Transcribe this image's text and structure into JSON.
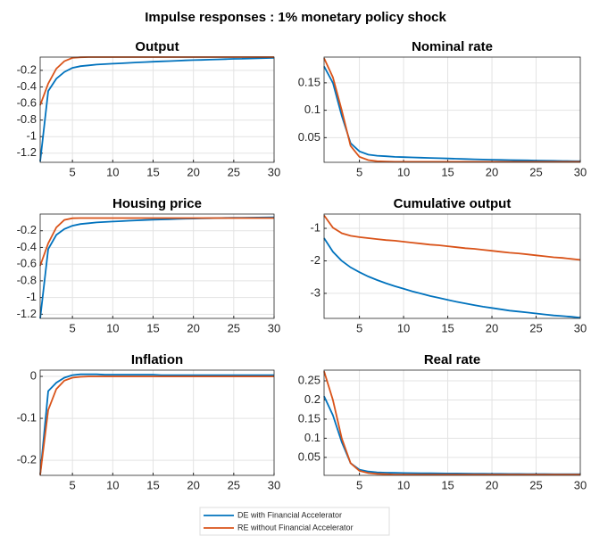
{
  "title": "Impulse responses : 1% monetary policy shock",
  "chart_data": [
    {
      "type": "line",
      "title": "Output",
      "x": [
        1,
        2,
        3,
        4,
        5,
        6,
        7,
        8,
        9,
        10,
        11,
        12,
        13,
        14,
        15,
        16,
        17,
        18,
        19,
        20,
        21,
        22,
        23,
        24,
        25,
        26,
        27,
        28,
        29,
        30
      ],
      "xlim": [
        1,
        30
      ],
      "xticks": [
        5,
        10,
        15,
        20,
        25,
        30
      ],
      "ylim": [
        -1.31,
        -0.04
      ],
      "yticks": [
        -1.2,
        -1,
        -0.8,
        -0.6,
        -0.4,
        -0.2
      ],
      "grid": true,
      "series": [
        {
          "name": "DE with Financial Accelerator",
          "color": "#0072bd",
          "values": [
            -1.3,
            -0.45,
            -0.3,
            -0.22,
            -0.17,
            -0.15,
            -0.14,
            -0.13,
            -0.125,
            -0.12,
            -0.115,
            -0.11,
            -0.105,
            -0.1,
            -0.096,
            -0.092,
            -0.088,
            -0.084,
            -0.08,
            -0.077,
            -0.074,
            -0.071,
            -0.068,
            -0.065,
            -0.062,
            -0.06,
            -0.057,
            -0.055,
            -0.052,
            -0.05
          ]
        },
        {
          "name": "RE without Financial Accelerator",
          "color": "#d95319",
          "values": [
            -0.62,
            -0.36,
            -0.18,
            -0.09,
            -0.05,
            -0.042,
            -0.04,
            -0.04,
            -0.04,
            -0.04,
            -0.04,
            -0.04,
            -0.04,
            -0.04,
            -0.04,
            -0.04,
            -0.04,
            -0.04,
            -0.04,
            -0.04,
            -0.04,
            -0.04,
            -0.04,
            -0.04,
            -0.04,
            -0.04,
            -0.04,
            -0.04,
            -0.04,
            -0.04
          ]
        }
      ]
    },
    {
      "type": "line",
      "title": "Nominal rate",
      "x": [
        1,
        2,
        3,
        4,
        5,
        6,
        7,
        8,
        9,
        10,
        11,
        12,
        13,
        14,
        15,
        16,
        17,
        18,
        19,
        20,
        21,
        22,
        23,
        24,
        25,
        26,
        27,
        28,
        29,
        30
      ],
      "xlim": [
        1,
        30
      ],
      "xticks": [
        5,
        10,
        15,
        20,
        25,
        30
      ],
      "ylim": [
        0.005,
        0.197
      ],
      "yticks": [
        0.05,
        0.1,
        0.15
      ],
      "grid": true,
      "series": [
        {
          "name": "DE with Financial Accelerator",
          "color": "#0072bd",
          "values": [
            0.18,
            0.15,
            0.09,
            0.04,
            0.025,
            0.019,
            0.017,
            0.016,
            0.015,
            0.0145,
            0.014,
            0.0135,
            0.013,
            0.0125,
            0.012,
            0.0115,
            0.011,
            0.0105,
            0.01,
            0.0097,
            0.0094,
            0.0091,
            0.0088,
            0.0085,
            0.0082,
            0.008,
            0.0077,
            0.0075,
            0.0072,
            0.007
          ]
        },
        {
          "name": "RE without Financial Accelerator",
          "color": "#d95319",
          "values": [
            0.195,
            0.16,
            0.1,
            0.035,
            0.015,
            0.009,
            0.007,
            0.0065,
            0.006,
            0.006,
            0.006,
            0.006,
            0.006,
            0.006,
            0.006,
            0.006,
            0.006,
            0.006,
            0.006,
            0.006,
            0.006,
            0.006,
            0.006,
            0.006,
            0.006,
            0.006,
            0.006,
            0.006,
            0.006,
            0.006
          ]
        }
      ]
    },
    {
      "type": "line",
      "title": "Housing price",
      "x": [
        1,
        2,
        3,
        4,
        5,
        6,
        7,
        8,
        9,
        10,
        11,
        12,
        13,
        14,
        15,
        16,
        17,
        18,
        19,
        20,
        21,
        22,
        23,
        24,
        25,
        26,
        27,
        28,
        29,
        30
      ],
      "xlim": [
        1,
        30
      ],
      "xticks": [
        5,
        10,
        15,
        20,
        25,
        30
      ],
      "ylim": [
        -1.25,
        0
      ],
      "yticks": [
        -1.2,
        -1,
        -0.8,
        -0.6,
        -0.4,
        -0.2
      ],
      "grid": true,
      "series": [
        {
          "name": "DE with Financial Accelerator",
          "color": "#0072bd",
          "values": [
            -1.25,
            -0.42,
            -0.25,
            -0.18,
            -0.14,
            -0.12,
            -0.11,
            -0.1,
            -0.095,
            -0.09,
            -0.085,
            -0.08,
            -0.076,
            -0.072,
            -0.068,
            -0.065,
            -0.062,
            -0.059,
            -0.056,
            -0.054,
            -0.052,
            -0.05,
            -0.048,
            -0.046,
            -0.045,
            -0.044,
            -0.043,
            -0.042,
            -0.041,
            -0.04
          ]
        },
        {
          "name": "RE without Financial Accelerator",
          "color": "#d95319",
          "values": [
            -0.62,
            -0.35,
            -0.16,
            -0.07,
            -0.05,
            -0.048,
            -0.048,
            -0.048,
            -0.048,
            -0.048,
            -0.048,
            -0.048,
            -0.048,
            -0.048,
            -0.048,
            -0.048,
            -0.048,
            -0.048,
            -0.048,
            -0.048,
            -0.048,
            -0.048,
            -0.048,
            -0.048,
            -0.048,
            -0.048,
            -0.048,
            -0.048,
            -0.048,
            -0.048
          ]
        }
      ]
    },
    {
      "type": "line",
      "title": "Cumulative output",
      "x": [
        1,
        2,
        3,
        4,
        5,
        6,
        7,
        8,
        9,
        10,
        11,
        12,
        13,
        14,
        15,
        16,
        17,
        18,
        19,
        20,
        21,
        22,
        23,
        24,
        25,
        26,
        27,
        28,
        29,
        30
      ],
      "xlim": [
        1,
        30
      ],
      "xticks": [
        5,
        10,
        15,
        20,
        25,
        30
      ],
      "ylim": [
        -3.77,
        -0.56
      ],
      "yticks": [
        -3,
        -2,
        -1
      ],
      "grid": true,
      "series": [
        {
          "name": "DE with Financial Accelerator",
          "color": "#0072bd",
          "values": [
            -1.3,
            -1.72,
            -2.0,
            -2.2,
            -2.35,
            -2.48,
            -2.59,
            -2.69,
            -2.78,
            -2.86,
            -2.94,
            -3.01,
            -3.08,
            -3.14,
            -3.2,
            -3.26,
            -3.31,
            -3.36,
            -3.41,
            -3.45,
            -3.49,
            -3.53,
            -3.56,
            -3.59,
            -3.62,
            -3.65,
            -3.68,
            -3.7,
            -3.72,
            -3.75
          ]
        },
        {
          "name": "RE without Financial Accelerator",
          "color": "#d95319",
          "values": [
            -0.6,
            -0.98,
            -1.15,
            -1.23,
            -1.27,
            -1.3,
            -1.33,
            -1.36,
            -1.38,
            -1.41,
            -1.44,
            -1.47,
            -1.5,
            -1.52,
            -1.55,
            -1.58,
            -1.61,
            -1.63,
            -1.66,
            -1.69,
            -1.72,
            -1.75,
            -1.77,
            -1.8,
            -1.83,
            -1.86,
            -1.89,
            -1.91,
            -1.94,
            -1.97
          ]
        }
      ]
    },
    {
      "type": "line",
      "title": "Inflation",
      "x": [
        1,
        2,
        3,
        4,
        5,
        6,
        7,
        8,
        9,
        10,
        11,
        12,
        13,
        14,
        15,
        16,
        17,
        18,
        19,
        20,
        21,
        22,
        23,
        24,
        25,
        26,
        27,
        28,
        29,
        30
      ],
      "xlim": [
        1,
        30
      ],
      "xticks": [
        5,
        10,
        15,
        20,
        25,
        30
      ],
      "ylim": [
        -0.236,
        0.015
      ],
      "yticks": [
        -0.2,
        -0.1,
        0
      ],
      "grid": true,
      "series": [
        {
          "name": "DE with Financial Accelerator",
          "color": "#0072bd",
          "values": [
            -0.235,
            -0.035,
            -0.015,
            -0.003,
            0.003,
            0.005,
            0.005,
            0.005,
            0.004,
            0.004,
            0.004,
            0.004,
            0.004,
            0.004,
            0.004,
            0.003,
            0.003,
            0.003,
            0.003,
            0.003,
            0.003,
            0.003,
            0.003,
            0.003,
            0.003,
            0.003,
            0.003,
            0.003,
            0.003,
            0.003
          ]
        },
        {
          "name": "RE without Financial Accelerator",
          "color": "#d95319",
          "values": [
            -0.235,
            -0.08,
            -0.03,
            -0.01,
            -0.003,
            -0.001,
            0,
            0,
            0,
            0,
            0,
            0,
            0,
            0,
            0,
            0,
            0,
            0,
            0,
            0,
            0,
            0,
            0,
            0,
            0,
            0,
            0,
            0,
            0,
            0
          ]
        }
      ]
    },
    {
      "type": "line",
      "title": "Real rate",
      "x": [
        1,
        2,
        3,
        4,
        5,
        6,
        7,
        8,
        9,
        10,
        11,
        12,
        13,
        14,
        15,
        16,
        17,
        18,
        19,
        20,
        21,
        22,
        23,
        24,
        25,
        26,
        27,
        28,
        29,
        30
      ],
      "xlim": [
        1,
        30
      ],
      "xticks": [
        5,
        10,
        15,
        20,
        25,
        30
      ],
      "ylim": [
        0.003,
        0.278
      ],
      "yticks": [
        0.05,
        0.1,
        0.15,
        0.2,
        0.25
      ],
      "grid": true,
      "series": [
        {
          "name": "DE with Financial Accelerator",
          "color": "#0072bd",
          "values": [
            0.21,
            0.16,
            0.09,
            0.035,
            0.018,
            0.013,
            0.011,
            0.01,
            0.0095,
            0.009,
            0.0088,
            0.0086,
            0.0084,
            0.0082,
            0.008,
            0.0078,
            0.0076,
            0.0074,
            0.0072,
            0.007,
            0.0069,
            0.0068,
            0.0067,
            0.0066,
            0.0065,
            0.0064,
            0.0063,
            0.0062,
            0.0061,
            0.006
          ]
        },
        {
          "name": "RE without Financial Accelerator",
          "color": "#d95319",
          "values": [
            0.275,
            0.2,
            0.1,
            0.035,
            0.015,
            0.009,
            0.007,
            0.006,
            0.005,
            0.005,
            0.005,
            0.005,
            0.005,
            0.005,
            0.005,
            0.005,
            0.005,
            0.005,
            0.005,
            0.005,
            0.005,
            0.005,
            0.005,
            0.005,
            0.005,
            0.005,
            0.005,
            0.005,
            0.005,
            0.005
          ]
        }
      ]
    }
  ]
}
